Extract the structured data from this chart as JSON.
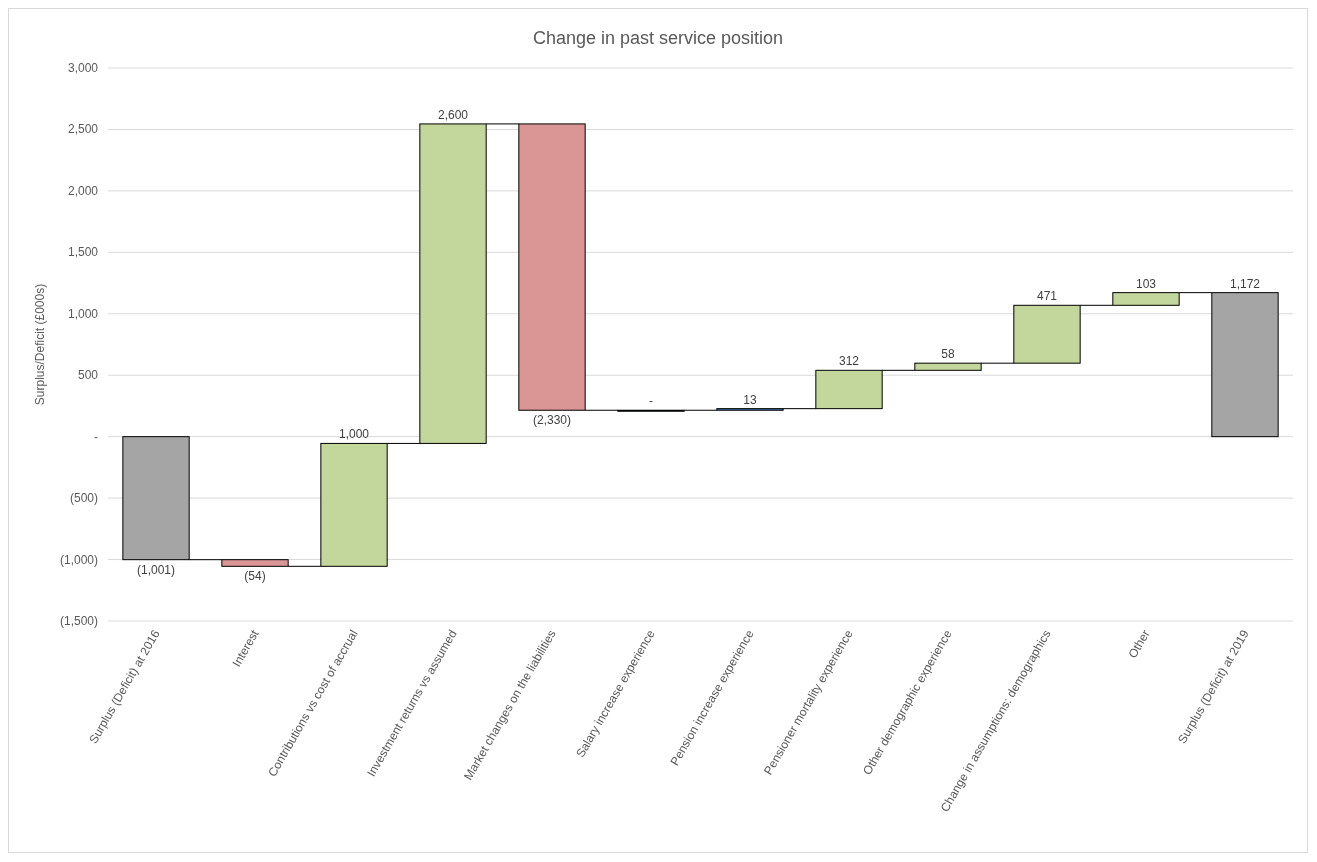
{
  "chart_data": {
    "type": "bar",
    "title": "Change in past service position",
    "ylabel": "Surplus/Deficit (£000s)",
    "categories": [
      "Surplus (Deficit) at 2016",
      "Interest",
      "Contributions vs cost of accrual",
      "Investment returns vs assumed",
      "Market changes on the liabilities",
      "Salary increase experience",
      "Pension increase experience",
      "Pensioner mortality experience",
      "Other demographic experience",
      "Change in assumptions: demographics",
      "Other",
      "Surplus (Deficit) at 2019"
    ],
    "values": [
      -1001,
      -54,
      1000,
      2600,
      -2330,
      0,
      13,
      312,
      58,
      471,
      103,
      1172
    ],
    "base": [
      0,
      -1001,
      -1055,
      -55,
      2545,
      215,
      215,
      228,
      540,
      598,
      1069,
      0
    ],
    "colors": [
      "#a5a5a5",
      "#d99694",
      "#c3d69b",
      "#c3d69b",
      "#d99694",
      "#4f81bd",
      "#4f81bd",
      "#c3d69b",
      "#c3d69b",
      "#c3d69b",
      "#c3d69b",
      "#a5a5a5"
    ],
    "value_labels": [
      "(1,001)",
      "(54)",
      "1,000",
      "2,600",
      "(2,330)",
      "-",
      "13",
      "312",
      "58",
      "471",
      "103",
      "1,172"
    ],
    "ylim": [
      -1500,
      3000
    ],
    "yticks": [
      {
        "value": -1500,
        "label": "(1,500)"
      },
      {
        "value": -1000,
        "label": "(1,000)"
      },
      {
        "value": -500,
        "label": "(500)"
      },
      {
        "value": 0,
        "label": "-"
      },
      {
        "value": 500,
        "label": "500"
      },
      {
        "value": 1000,
        "label": "1,000"
      },
      {
        "value": 1500,
        "label": "1,500"
      },
      {
        "value": 2000,
        "label": "2,000"
      },
      {
        "value": 2500,
        "label": "2,500"
      },
      {
        "value": 3000,
        "label": "3,000"
      }
    ],
    "grid": "y"
  }
}
